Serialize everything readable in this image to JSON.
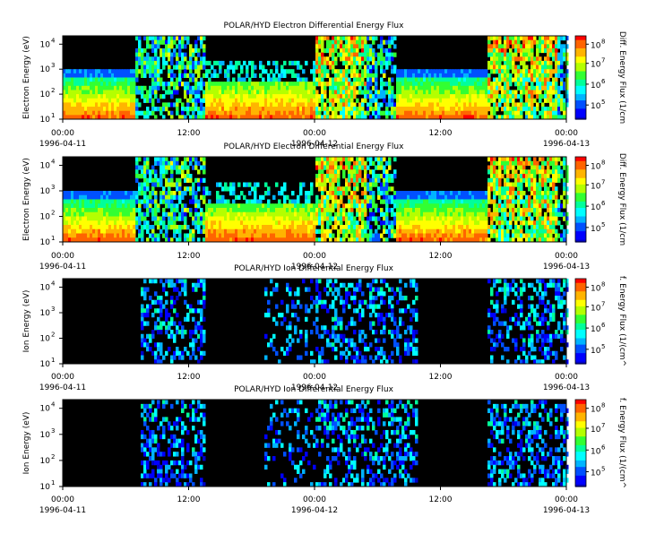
{
  "chart_data": [
    {
      "type": "heatmap",
      "title": "POLAR/HYD  Electron Differential Energy Flux",
      "ylabel": "Electron Energy (eV)",
      "colorbar_label": "Diff. Energy Flux (1/cm",
      "y_ticks": [
        {
          "base": "10",
          "exp": "1"
        },
        {
          "base": "10",
          "exp": "2"
        },
        {
          "base": "10",
          "exp": "3"
        },
        {
          "base": "10",
          "exp": "4"
        }
      ],
      "cbar_ticks": [
        {
          "base": "10",
          "exp": "5"
        },
        {
          "base": "10",
          "exp": "6"
        },
        {
          "base": "10",
          "exp": "7"
        },
        {
          "base": "10",
          "exp": "8"
        }
      ],
      "x_ticks": [
        {
          "time": "00:00",
          "date": "1996-04-11"
        },
        {
          "time": "12:00",
          "date": ""
        },
        {
          "time": "00:00",
          "date": "1996-04-12"
        },
        {
          "time": "12:00",
          "date": ""
        },
        {
          "time": "00:00",
          "date": "1996-04-13"
        }
      ]
    },
    {
      "type": "heatmap",
      "title": "POLAR/HYD  Electron Differential Energy Flux",
      "ylabel": "Electron Energy (eV)",
      "colorbar_label": "Diff. Energy Flux (1/cm",
      "y_ticks": [
        {
          "base": "10",
          "exp": "1"
        },
        {
          "base": "10",
          "exp": "2"
        },
        {
          "base": "10",
          "exp": "3"
        },
        {
          "base": "10",
          "exp": "4"
        }
      ],
      "cbar_ticks": [
        {
          "base": "10",
          "exp": "5"
        },
        {
          "base": "10",
          "exp": "6"
        },
        {
          "base": "10",
          "exp": "7"
        },
        {
          "base": "10",
          "exp": "8"
        }
      ],
      "x_ticks": [
        {
          "time": "00:00",
          "date": "1996-04-11"
        },
        {
          "time": "12:00",
          "date": ""
        },
        {
          "time": "00:00",
          "date": "1996-04-12"
        },
        {
          "time": "12:00",
          "date": ""
        },
        {
          "time": "00:00",
          "date": "1996-04-13"
        }
      ]
    },
    {
      "type": "heatmap",
      "title": "POLAR/HYD  Ion Differential Energy Flux",
      "ylabel": "Ion Energy (eV)",
      "colorbar_label": "f. Energy Flux (1/(cm^",
      "y_ticks": [
        {
          "base": "10",
          "exp": "1"
        },
        {
          "base": "10",
          "exp": "2"
        },
        {
          "base": "10",
          "exp": "3"
        },
        {
          "base": "10",
          "exp": "4"
        }
      ],
      "cbar_ticks": [
        {
          "base": "10",
          "exp": "5"
        },
        {
          "base": "10",
          "exp": "6"
        },
        {
          "base": "10",
          "exp": "7"
        },
        {
          "base": "10",
          "exp": "8"
        }
      ],
      "x_ticks": [
        {
          "time": "00:00",
          "date": "1996-04-11"
        },
        {
          "time": "12:00",
          "date": ""
        },
        {
          "time": "00:00",
          "date": "1996-04-12"
        },
        {
          "time": "12:00",
          "date": ""
        },
        {
          "time": "00:00",
          "date": "1996-04-13"
        }
      ]
    },
    {
      "type": "heatmap",
      "title": "POLAR/HYD  Ion Differential Energy Flux",
      "ylabel": "Ion Energy (eV)",
      "colorbar_label": "f. Energy Flux (1/(cm^",
      "y_ticks": [
        {
          "base": "10",
          "exp": "1"
        },
        {
          "base": "10",
          "exp": "2"
        },
        {
          "base": "10",
          "exp": "3"
        },
        {
          "base": "10",
          "exp": "4"
        }
      ],
      "cbar_ticks": [
        {
          "base": "10",
          "exp": "5"
        },
        {
          "base": "10",
          "exp": "6"
        },
        {
          "base": "10",
          "exp": "7"
        },
        {
          "base": "10",
          "exp": "8"
        }
      ],
      "x_ticks": [
        {
          "time": "00:00",
          "date": "1996-04-11"
        },
        {
          "time": "12:00",
          "date": ""
        },
        {
          "time": "00:00",
          "date": "1996-04-12"
        },
        {
          "time": "12:00",
          "date": ""
        },
        {
          "time": "00:00",
          "date": "1996-04-13"
        }
      ]
    }
  ],
  "colors": {
    "background": "#000000",
    "colormap": [
      "#0000c8",
      "#0000ff",
      "#0050ff",
      "#00b4ff",
      "#00ffff",
      "#00ff9a",
      "#32ff32",
      "#b4ff00",
      "#ffff00",
      "#ffb400",
      "#ff6400",
      "#ff0000"
    ]
  }
}
